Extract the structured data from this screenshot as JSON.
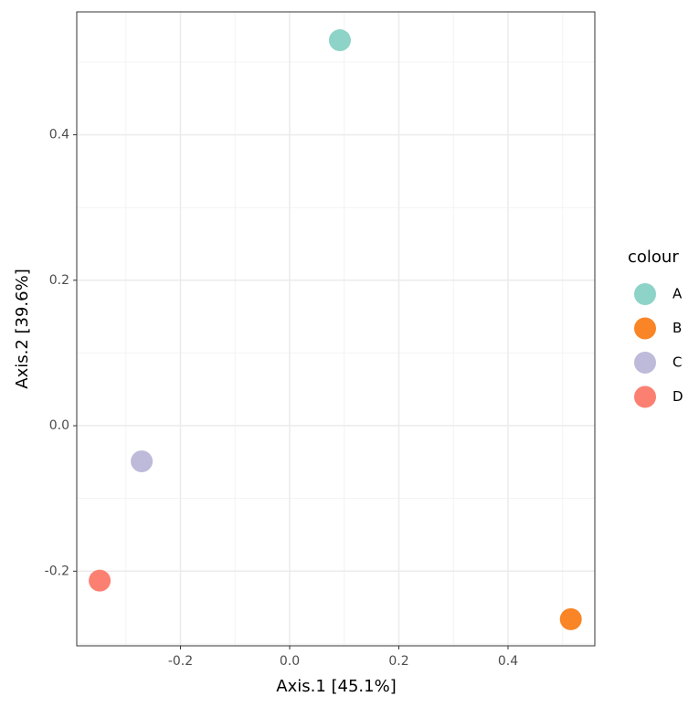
{
  "chart_data": {
    "type": "scatter",
    "x_label": "Axis.1   [45.1%]",
    "y_label": "Axis.2   [39.6%]",
    "legend_title": "colour",
    "series": [
      {
        "name": "A",
        "color": "#8dd3c7",
        "x": [
          0.092
        ],
        "y": [
          0.53
        ]
      },
      {
        "name": "B",
        "color": "#f98526",
        "x": [
          0.515
        ],
        "y": [
          -0.266
        ]
      },
      {
        "name": "C",
        "color": "#bebada",
        "x": [
          -0.271
        ],
        "y": [
          -0.049
        ]
      },
      {
        "name": "D",
        "color": "#fb8072",
        "x": [
          -0.348
        ],
        "y": [
          -0.213
        ]
      }
    ],
    "xlim": [
      -0.39,
      0.559
    ],
    "ylim": [
      -0.3026,
      0.569
    ],
    "xticks": [
      -0.2,
      {
        "value": 0,
        "label": "0.0"
      },
      0.2,
      0.4
    ],
    "yticks": [
      -0.2,
      {
        "value": 0,
        "label": "0.0"
      },
      0.2,
      0.4
    ],
    "grid": true,
    "legend": "right"
  }
}
